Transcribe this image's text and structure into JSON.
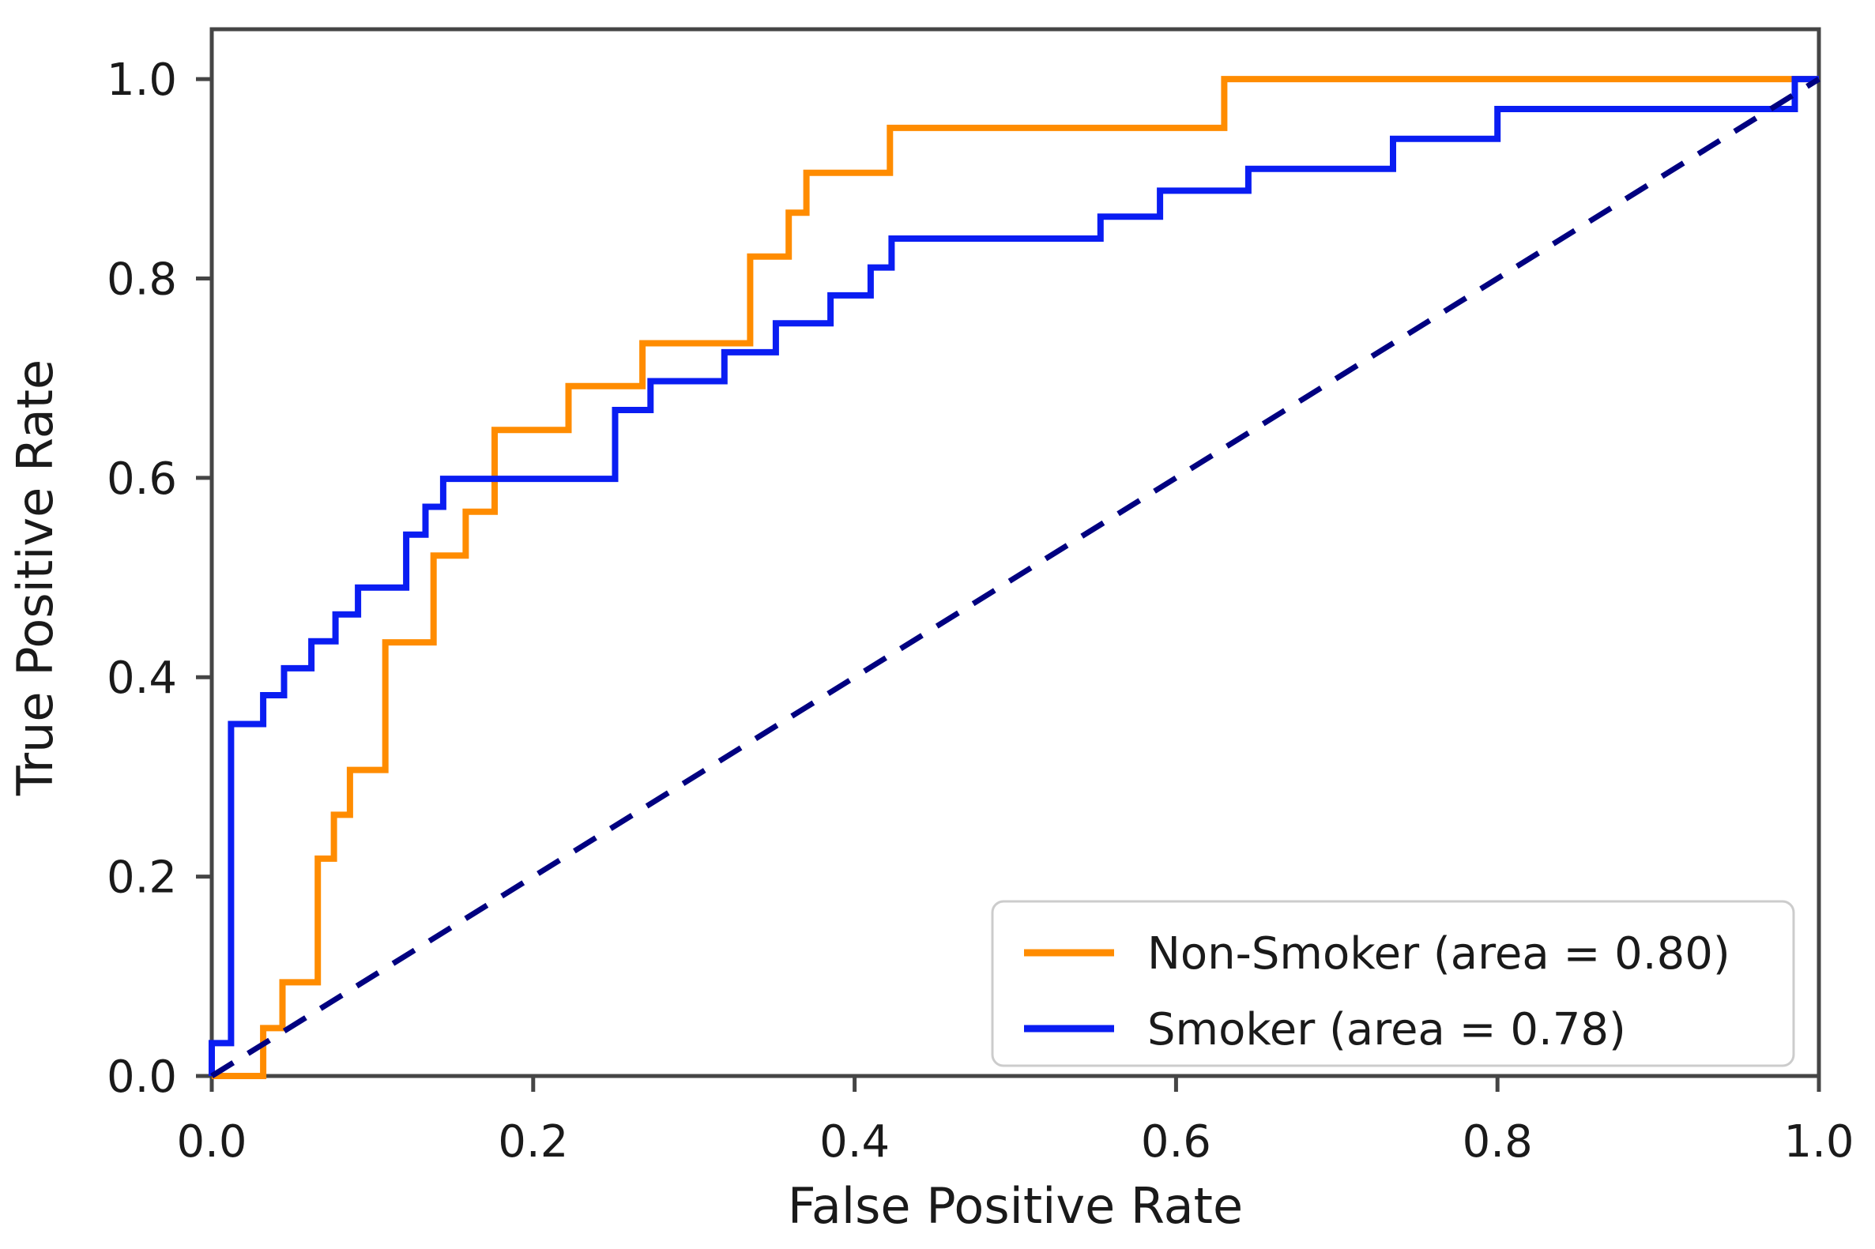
{
  "chart_data": {
    "type": "line",
    "subtype": "roc-curve-step",
    "title": "",
    "xlabel": "False Positive Rate",
    "ylabel": "True Positive Rate",
    "xlim": [
      0.0,
      1.0
    ],
    "ylim": [
      0.0,
      1.05
    ],
    "grid": false,
    "x_ticks": [
      {
        "value": 0.0,
        "label": "0.0"
      },
      {
        "value": 0.2,
        "label": "0.2"
      },
      {
        "value": 0.4,
        "label": "0.4"
      },
      {
        "value": 0.6,
        "label": "0.6"
      },
      {
        "value": 0.8,
        "label": "0.8"
      },
      {
        "value": 1.0,
        "label": "1.0"
      }
    ],
    "y_ticks": [
      {
        "value": 0.0,
        "label": "0.0"
      },
      {
        "value": 0.2,
        "label": "0.2"
      },
      {
        "value": 0.4,
        "label": "0.4"
      },
      {
        "value": 0.6,
        "label": "0.6"
      },
      {
        "value": 0.8,
        "label": "0.8"
      },
      {
        "value": 1.0,
        "label": "1.0"
      }
    ],
    "legend": {
      "position": "lower right",
      "entries": [
        {
          "label": "Non-Smoker (area = 0.80)",
          "color": "#ff8c00"
        },
        {
          "label": "Smoker (area = 0.78)",
          "color": "#0a1df2"
        }
      ]
    },
    "series": [
      {
        "name": "Non-Smoker (area = 0.80)",
        "auc": 0.8,
        "color": "#ff8c00",
        "line_style": "solid",
        "draw": "step-after",
        "points": [
          [
            0.0,
            0.0
          ],
          [
            0.032,
            0.048
          ],
          [
            0.044,
            0.094
          ],
          [
            0.066,
            0.218
          ],
          [
            0.076,
            0.262
          ],
          [
            0.086,
            0.307
          ],
          [
            0.108,
            0.435
          ],
          [
            0.138,
            0.522
          ],
          [
            0.158,
            0.566
          ],
          [
            0.176,
            0.648
          ],
          [
            0.222,
            0.692
          ],
          [
            0.268,
            0.735
          ],
          [
            0.335,
            0.822
          ],
          [
            0.359,
            0.866
          ],
          [
            0.37,
            0.906
          ],
          [
            0.422,
            0.951
          ],
          [
            0.63,
            1.0
          ],
          [
            1.0,
            1.0
          ]
        ]
      },
      {
        "name": "Smoker (area = 0.78)",
        "auc": 0.78,
        "color": "#0a1df2",
        "line_style": "solid",
        "draw": "step-after",
        "points": [
          [
            0.0,
            0.0
          ],
          [
            0.0,
            0.033
          ],
          [
            0.012,
            0.353
          ],
          [
            0.032,
            0.382
          ],
          [
            0.045,
            0.409
          ],
          [
            0.062,
            0.436
          ],
          [
            0.077,
            0.463
          ],
          [
            0.091,
            0.49
          ],
          [
            0.121,
            0.543
          ],
          [
            0.133,
            0.571
          ],
          [
            0.144,
            0.599
          ],
          [
            0.251,
            0.668
          ],
          [
            0.273,
            0.697
          ],
          [
            0.319,
            0.726
          ],
          [
            0.351,
            0.755
          ],
          [
            0.385,
            0.783
          ],
          [
            0.41,
            0.811
          ],
          [
            0.423,
            0.84
          ],
          [
            0.553,
            0.862
          ],
          [
            0.59,
            0.888
          ],
          [
            0.645,
            0.91
          ],
          [
            0.735,
            0.94
          ],
          [
            0.8,
            0.97
          ],
          [
            0.985,
            1.0
          ],
          [
            1.0,
            1.0
          ]
        ]
      },
      {
        "name": "chance-diagonal",
        "color": "#000080",
        "line_style": "dashed",
        "draw": "linear",
        "points": [
          [
            0.0,
            0.0
          ],
          [
            1.0,
            1.0
          ]
        ]
      }
    ],
    "colors": {
      "axis": "#454545",
      "text": "#1a1a1a",
      "legend_border": "#cccccc",
      "background": "#ffffff"
    }
  }
}
